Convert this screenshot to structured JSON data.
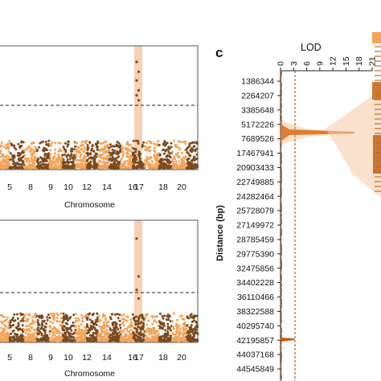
{
  "colors": {
    "dark": "#7a4a1f",
    "light": "#f4a45a",
    "highlight": "#f6c9a6",
    "peak": "#c85a12",
    "axis": "#222222"
  },
  "panel_c_label": "c",
  "chart_data": [
    {
      "type": "scatter",
      "panel": "top-manhattan",
      "xlabel": "Chromosome",
      "ylabel": "",
      "x_tick_labels": [
        "5",
        "8",
        "9",
        "10",
        "12",
        "14",
        "16",
        "17",
        "18",
        "20"
      ],
      "threshold_line": "dashed",
      "highlight_chromosome": "17",
      "peak_points_y_fraction": [
        0.87,
        0.79,
        0.72,
        0.64,
        0.6,
        0.56
      ],
      "grid": false
    },
    {
      "type": "scatter",
      "panel": "bottom-manhattan",
      "xlabel": "Chromosome",
      "ylabel": "",
      "x_tick_labels": [
        "5",
        "8",
        "9",
        "10",
        "12",
        "14",
        "16",
        "17",
        "18",
        "20"
      ],
      "threshold_line": "dashed",
      "highlight_chromosome": "17",
      "peak_points_y_fraction": [
        0.85,
        0.54,
        0.43,
        0.36
      ],
      "grid": false
    },
    {
      "type": "line",
      "panel": "c",
      "title": "LOD",
      "ylabel": "Distance (bp)",
      "lod_ticks": [
        "0",
        "3",
        "6",
        "9",
        "12",
        "15",
        "18",
        "21"
      ],
      "lod_range": [
        0,
        21
      ],
      "threshold_lod": 3,
      "peak_lod": 17.5,
      "peak_position_bp": 3385648,
      "distance_ticks": [
        "1386344",
        "2264207",
        "3385648",
        "5172226",
        "7689526",
        "17467941",
        "20903433",
        "22749885",
        "24282464",
        "25728079",
        "27149972",
        "28785459",
        "29775390",
        "32475856",
        "34402228",
        "36110466",
        "38322588",
        "40295740",
        "42195857",
        "44037168",
        "44545849"
      ]
    }
  ]
}
